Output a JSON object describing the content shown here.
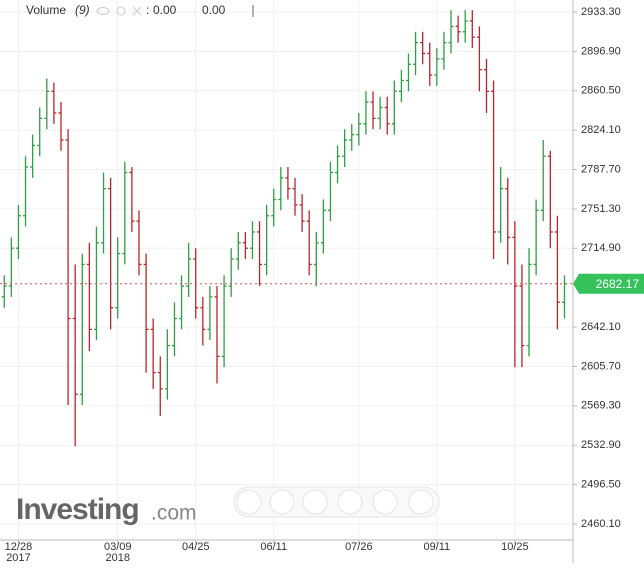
{
  "chart_data": {
    "type": "ohlc",
    "indicator": {
      "name": "Volume",
      "period": "(9)",
      "readouts": [
        {
          "value": 0,
          "label": "0.00",
          "color": "#e0413a"
        },
        {
          "value": 0,
          "label": "0.00",
          "color": "#2266cc"
        }
      ]
    },
    "watermark": {
      "brand": "Investing",
      "suffix": ".com"
    },
    "up_color": "#2f9e44",
    "down_color": "#b8262b",
    "last_price": 2682.17,
    "last_price_color": "#35c25a",
    "grid": true,
    "xlim": [
      -0.6,
      80.2
    ],
    "xticks": [
      {
        "value": 2,
        "label": "12/28"
      },
      {
        "value": 16,
        "label": "03/09"
      },
      {
        "value": 27,
        "label": "04/25"
      },
      {
        "value": 38,
        "label": "06/11"
      },
      {
        "value": 50,
        "label": "07/26"
      },
      {
        "value": 61,
        "label": "09/11"
      },
      {
        "value": 72,
        "label": "10/25"
      }
    ],
    "x_year_labels": [
      {
        "value": 2,
        "label": "2017"
      },
      {
        "value": 16,
        "label": "2018"
      }
    ],
    "ylim": [
      2445.3,
      2944.4
    ],
    "yticks": [
      {
        "value": 2933.3,
        "label": "2933.30"
      },
      {
        "value": 2896.9,
        "label": "2896.90"
      },
      {
        "value": 2860.5,
        "label": "2860.50"
      },
      {
        "value": 2824.1,
        "label": "2824.10"
      },
      {
        "value": 2787.7,
        "label": "2787.70"
      },
      {
        "value": 2751.3,
        "label": "2751.30"
      },
      {
        "value": 2714.9,
        "label": "2714.90"
      },
      {
        "value": 2642.1,
        "label": "2642.10"
      },
      {
        "value": 2605.7,
        "label": "2605.70"
      },
      {
        "value": 2569.3,
        "label": "2569.30"
      },
      {
        "value": 2532.9,
        "label": "2532.90"
      },
      {
        "value": 2496.5,
        "label": "2496.50"
      },
      {
        "value": 2460.1,
        "label": "2460.10"
      }
    ],
    "open": [
      2670,
      2680,
      2715,
      2745,
      2790,
      2810,
      2835,
      2860,
      2840,
      2815,
      2650,
      2580,
      2700,
      2640,
      2720,
      2770,
      2660,
      2710,
      2785,
      2740,
      2700,
      2640,
      2600,
      2585,
      2625,
      2650,
      2680,
      2705,
      2660,
      2640,
      2670,
      2615,
      2680,
      2705,
      2720,
      2715,
      2730,
      2700,
      2745,
      2760,
      2780,
      2770,
      2755,
      2740,
      2700,
      2720,
      2750,
      2785,
      2800,
      2815,
      2820,
      2830,
      2850,
      2835,
      2845,
      2830,
      2860,
      2870,
      2885,
      2905,
      2895,
      2875,
      2890,
      2905,
      2920,
      2915,
      2925,
      2910,
      2880,
      2860,
      2730,
      2770,
      2725,
      2680,
      2625,
      2700,
      2750,
      2800,
      2730,
      2665
    ],
    "high": [
      2690,
      2725,
      2755,
      2800,
      2820,
      2845,
      2872,
      2868,
      2850,
      2825,
      2700,
      2710,
      2720,
      2735,
      2785,
      2780,
      2725,
      2795,
      2790,
      2750,
      2710,
      2650,
      2615,
      2640,
      2665,
      2690,
      2720,
      2715,
      2670,
      2680,
      2680,
      2690,
      2715,
      2730,
      2730,
      2740,
      2740,
      2755,
      2770,
      2790,
      2790,
      2780,
      2765,
      2750,
      2730,
      2760,
      2795,
      2810,
      2825,
      2830,
      2840,
      2860,
      2860,
      2855,
      2855,
      2870,
      2880,
      2895,
      2915,
      2915,
      2905,
      2900,
      2915,
      2935,
      2930,
      2935,
      2935,
      2920,
      2890,
      2870,
      2790,
      2780,
      2740,
      2700,
      2715,
      2760,
      2815,
      2805,
      2745,
      2690
    ],
    "low": [
      2660,
      2670,
      2705,
      2735,
      2780,
      2800,
      2825,
      2830,
      2805,
      2570,
      2532,
      2570,
      2620,
      2630,
      2710,
      2640,
      2650,
      2700,
      2730,
      2690,
      2600,
      2585,
      2560,
      2575,
      2615,
      2640,
      2670,
      2650,
      2625,
      2630,
      2590,
      2605,
      2670,
      2695,
      2705,
      2705,
      2680,
      2690,
      2735,
      2750,
      2760,
      2745,
      2730,
      2690,
      2680,
      2710,
      2740,
      2775,
      2790,
      2805,
      2810,
      2820,
      2825,
      2825,
      2820,
      2820,
      2850,
      2860,
      2875,
      2885,
      2865,
      2865,
      2880,
      2895,
      2905,
      2905,
      2900,
      2860,
      2840,
      2705,
      2720,
      2700,
      2605,
      2605,
      2615,
      2690,
      2740,
      2715,
      2640,
      2650
    ],
    "close": [
      2680,
      2715,
      2745,
      2790,
      2810,
      2835,
      2860,
      2840,
      2815,
      2650,
      2580,
      2700,
      2640,
      2720,
      2770,
      2660,
      2710,
      2785,
      2740,
      2700,
      2640,
      2600,
      2585,
      2625,
      2650,
      2680,
      2705,
      2660,
      2640,
      2670,
      2615,
      2680,
      2705,
      2720,
      2715,
      2730,
      2700,
      2745,
      2760,
      2780,
      2770,
      2755,
      2740,
      2700,
      2720,
      2750,
      2785,
      2800,
      2815,
      2820,
      2830,
      2850,
      2835,
      2845,
      2830,
      2860,
      2870,
      2885,
      2905,
      2895,
      2875,
      2890,
      2905,
      2920,
      2915,
      2925,
      2910,
      2880,
      2860,
      2730,
      2770,
      2725,
      2680,
      2625,
      2700,
      2750,
      2800,
      2730,
      2665,
      2682.17
    ]
  }
}
